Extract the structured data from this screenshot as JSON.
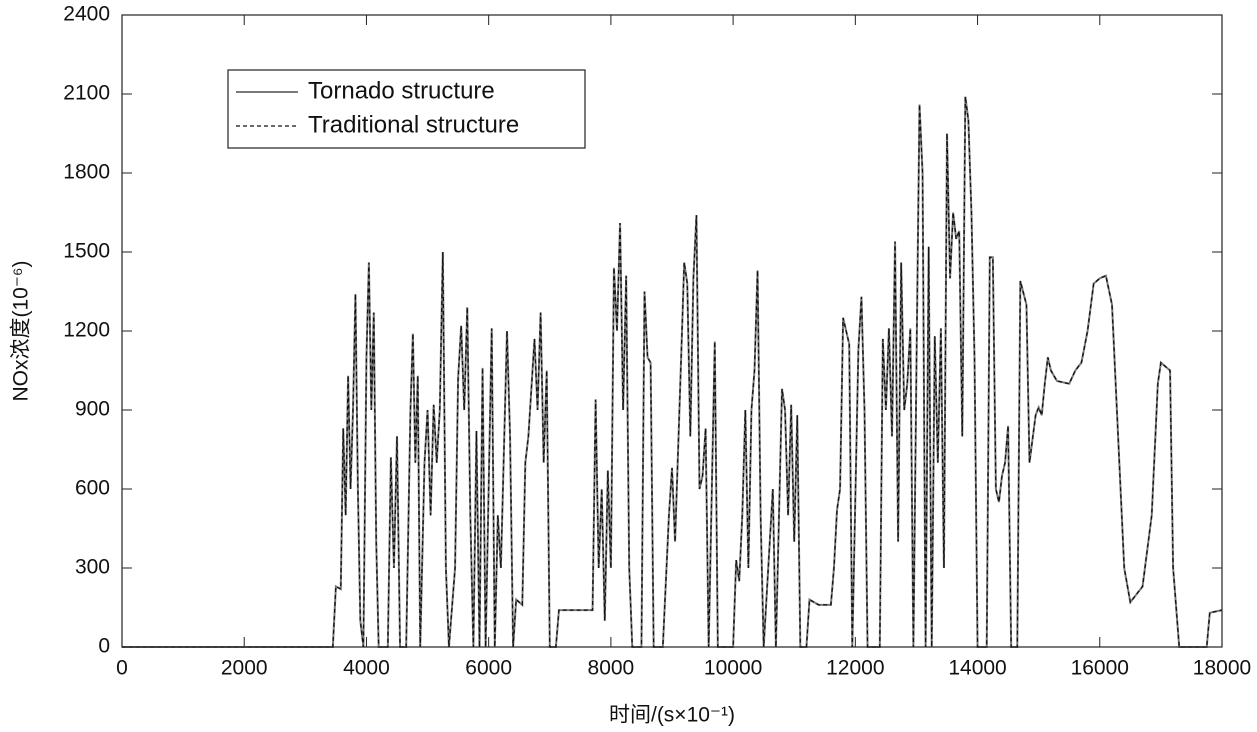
{
  "chart_data": {
    "type": "line",
    "xlabel": "时间/(s×10⁻¹)",
    "ylabel": "NOx浓度(10⁻⁶)",
    "xlim": [
      0,
      18000
    ],
    "xticks": [
      0,
      2000,
      4000,
      6000,
      8000,
      10000,
      12000,
      14000,
      16000,
      18000
    ],
    "ylim": [
      0,
      2400
    ],
    "yticks": [
      0,
      300,
      600,
      900,
      1200,
      1500,
      1800,
      2100,
      2400
    ],
    "legend": "upper left",
    "x": [
      0,
      3450,
      3500,
      3580,
      3620,
      3660,
      3700,
      3740,
      3780,
      3820,
      3860,
      3900,
      3950,
      4000,
      4040,
      4080,
      4120,
      4160,
      4200,
      4350,
      4400,
      4450,
      4500,
      4550,
      4650,
      4720,
      4760,
      4800,
      4840,
      4880,
      4950,
      5000,
      5050,
      5100,
      5150,
      5200,
      5250,
      5300,
      5350,
      5450,
      5500,
      5550,
      5600,
      5650,
      5700,
      5750,
      5800,
      5850,
      5900,
      5950,
      6050,
      6100,
      6150,
      6200,
      6300,
      6350,
      6400,
      6450,
      6550,
      6600,
      6650,
      6750,
      6800,
      6850,
      6900,
      6950,
      7000,
      7100,
      7150,
      7700,
      7750,
      7800,
      7850,
      7900,
      7950,
      8000,
      8050,
      8100,
      8150,
      8200,
      8250,
      8300,
      8350,
      8500,
      8550,
      8600,
      8650,
      8700,
      8850,
      8950,
      9000,
      9050,
      9150,
      9200,
      9250,
      9300,
      9350,
      9400,
      9450,
      9500,
      9550,
      9600,
      9700,
      9750,
      9900,
      10000,
      10050,
      10100,
      10150,
      10200,
      10250,
      10300,
      10350,
      10400,
      10450,
      10500,
      10650,
      10700,
      10800,
      10850,
      10900,
      10950,
      11000,
      11050,
      11100,
      11200,
      11250,
      11400,
      11600,
      11650,
      11700,
      11750,
      11800,
      11900,
      11950,
      12050,
      12100,
      12150,
      12200,
      12400,
      12450,
      12500,
      12550,
      12600,
      12650,
      12700,
      12750,
      12800,
      12850,
      12900,
      12950,
      13000,
      13050,
      13100,
      13150,
      13200,
      13250,
      13300,
      13350,
      13400,
      13450,
      13500,
      13550,
      13600,
      13650,
      13700,
      13750,
      13800,
      13850,
      13900,
      13950,
      14000,
      14150,
      14200,
      14250,
      14300,
      14350,
      14400,
      14450,
      14500,
      14550,
      14650,
      14700,
      14800,
      14850,
      14950,
      15000,
      15050,
      15100,
      15150,
      15200,
      15300,
      15500,
      15600,
      15700,
      15800,
      15900,
      16000,
      16100,
      16200,
      16300,
      16400,
      16500,
      16700,
      16850,
      16950,
      17000,
      17100,
      17150,
      17200,
      17300,
      17600,
      17750,
      17800,
      18000
    ],
    "series": [
      {
        "name": "Tornado structure",
        "color": "#7a7a7a",
        "line_style": "solid",
        "values": [
          0,
          0,
          230,
          220,
          830,
          500,
          1030,
          600,
          900,
          1340,
          600,
          100,
          0,
          1100,
          1460,
          900,
          1270,
          400,
          0,
          0,
          720,
          300,
          800,
          0,
          0,
          900,
          1190,
          700,
          1030,
          0,
          700,
          900,
          500,
          920,
          700,
          900,
          1500,
          300,
          0,
          300,
          1020,
          1220,
          900,
          1290,
          500,
          0,
          820,
          0,
          1060,
          0,
          1210,
          0,
          500,
          300,
          1200,
          800,
          0,
          180,
          160,
          700,
          800,
          1170,
          900,
          1270,
          700,
          1050,
          0,
          0,
          140,
          140,
          940,
          300,
          600,
          100,
          670,
          300,
          1440,
          1200,
          1610,
          900,
          1410,
          300,
          0,
          0,
          1350,
          1100,
          1080,
          0,
          0,
          500,
          680,
          400,
          1100,
          1460,
          1380,
          800,
          1400,
          1640,
          600,
          650,
          830,
          0,
          1160,
          0,
          0,
          0,
          330,
          250,
          500,
          900,
          300,
          900,
          1050,
          1430,
          500,
          0,
          600,
          0,
          980,
          900,
          500,
          920,
          400,
          880,
          0,
          0,
          180,
          160,
          160,
          300,
          520,
          600,
          1250,
          1150,
          0,
          1130,
          1330,
          900,
          0,
          0,
          1170,
          900,
          1210,
          800,
          1540,
          400,
          1460,
          900,
          1000,
          1210,
          0,
          1060,
          2060,
          1800,
          0,
          1520,
          0,
          1180,
          700,
          1210,
          300,
          1950,
          1400,
          1650,
          1550,
          1580,
          800,
          2090,
          2000,
          1650,
          1100,
          0,
          0,
          1480,
          1480,
          600,
          550,
          650,
          700,
          840,
          0,
          0,
          1390,
          1300,
          700,
          880,
          910,
          880,
          1000,
          1100,
          1050,
          1010,
          1000,
          1050,
          1080,
          1200,
          1380,
          1400,
          1410,
          1300,
          800,
          300,
          170,
          230,
          500,
          1000,
          1080,
          1060,
          1050,
          300,
          0,
          0,
          0,
          130,
          140
        ]
      },
      {
        "name": "Traditional structure",
        "color": "#111111",
        "line_style": "dashed",
        "values": [
          0,
          0,
          230,
          220,
          830,
          500,
          1030,
          600,
          900,
          1340,
          600,
          100,
          0,
          1100,
          1460,
          900,
          1270,
          400,
          0,
          0,
          720,
          300,
          800,
          0,
          0,
          900,
          1190,
          700,
          1030,
          0,
          700,
          900,
          500,
          920,
          700,
          900,
          1500,
          300,
          0,
          300,
          1020,
          1220,
          900,
          1290,
          500,
          0,
          820,
          0,
          1060,
          0,
          1210,
          0,
          500,
          300,
          1200,
          800,
          0,
          180,
          160,
          700,
          800,
          1170,
          900,
          1270,
          700,
          1050,
          0,
          0,
          140,
          140,
          940,
          300,
          600,
          100,
          670,
          300,
          1440,
          1200,
          1610,
          900,
          1410,
          300,
          0,
          0,
          1350,
          1100,
          1080,
          0,
          0,
          500,
          680,
          400,
          1100,
          1460,
          1380,
          800,
          1400,
          1640,
          600,
          650,
          830,
          0,
          1160,
          0,
          0,
          0,
          330,
          250,
          500,
          900,
          300,
          900,
          1050,
          1430,
          500,
          0,
          600,
          0,
          980,
          900,
          500,
          920,
          400,
          880,
          0,
          0,
          180,
          160,
          160,
          300,
          520,
          600,
          1250,
          1150,
          0,
          1130,
          1330,
          900,
          0,
          0,
          1170,
          900,
          1210,
          800,
          1540,
          400,
          1460,
          900,
          1000,
          1210,
          0,
          1060,
          2060,
          1800,
          0,
          1520,
          0,
          1180,
          700,
          1210,
          300,
          1950,
          1400,
          1650,
          1550,
          1580,
          800,
          2090,
          2000,
          1650,
          1100,
          0,
          0,
          1480,
          1480,
          600,
          550,
          650,
          700,
          840,
          0,
          0,
          1390,
          1300,
          700,
          880,
          910,
          880,
          1000,
          1100,
          1050,
          1010,
          1000,
          1050,
          1080,
          1200,
          1380,
          1400,
          1410,
          1300,
          800,
          300,
          170,
          230,
          500,
          1000,
          1080,
          1060,
          1050,
          300,
          0,
          0,
          0,
          130,
          140
        ]
      }
    ]
  }
}
